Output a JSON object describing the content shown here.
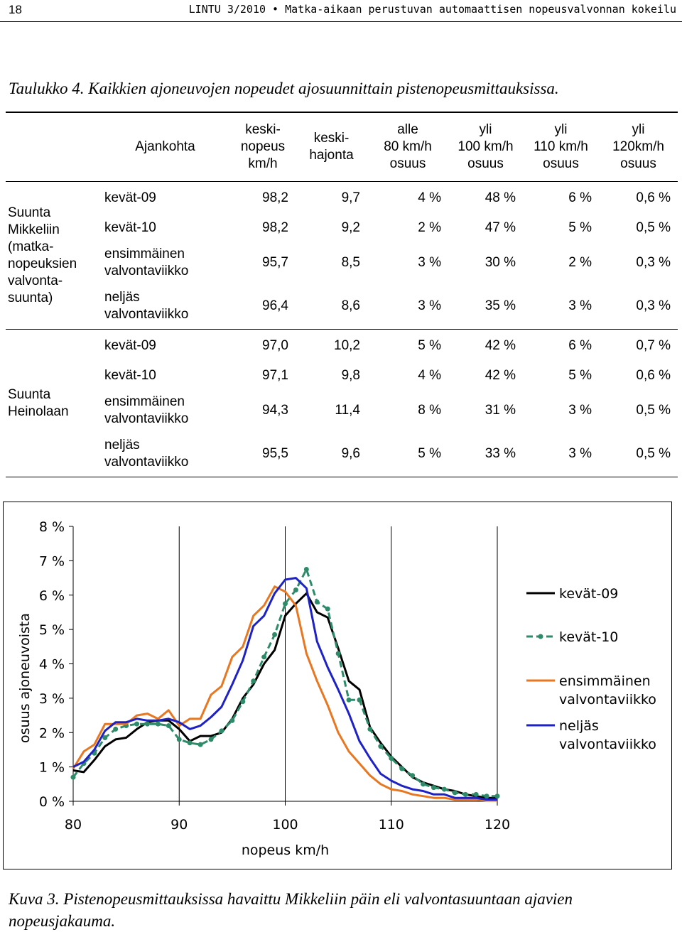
{
  "header": {
    "page_number": "18",
    "running_title": "LINTU 3/2010 • Matka-aikaan perustuvan automaattisen nopeusvalvonnan kokeilu"
  },
  "table": {
    "caption": "Taulukko 4. Kaikkien ajoneuvojen nopeudet ajosuunnittain pistenopeusmittauksissa.",
    "columns": [
      {
        "label": "",
        "lines": []
      },
      {
        "label": "Ajankohta",
        "lines": [
          "Ajankohta"
        ]
      },
      {
        "label": "keskinopeus km/h",
        "lines": [
          "keski-",
          "nopeus",
          "km/h"
        ]
      },
      {
        "label": "keskihajonta",
        "lines": [
          "keski-",
          "hajonta"
        ]
      },
      {
        "label": "alle 80 km/h osuus",
        "lines": [
          "alle",
          "80 km/h",
          "osuus"
        ]
      },
      {
        "label": "yli 100 km/h osuus",
        "lines": [
          "yli",
          "100 km/h",
          "osuus"
        ]
      },
      {
        "label": "yli 110 km/h osuus",
        "lines": [
          "yli",
          "110 km/h",
          "osuus"
        ]
      },
      {
        "label": "yli 120km/h osuus",
        "lines": [
          "yli",
          "120km/h",
          "osuus"
        ]
      }
    ],
    "groups": [
      {
        "label_lines": [
          "Suunta",
          "Mikkeliin",
          "(matka-",
          "nopeuksien",
          "valvonta-",
          "suunta)"
        ],
        "rows": [
          {
            "period": [
              "kevät-09"
            ],
            "values": [
              "98,2",
              "9,7",
              "4 %",
              "48 %",
              "6 %",
              "0,6 %"
            ]
          },
          {
            "period": [
              "kevät-10"
            ],
            "values": [
              "98,2",
              "9,2",
              "2 %",
              "47 %",
              "5 %",
              "0,5 %"
            ]
          },
          {
            "period": [
              "ensimmäinen",
              "valvontaviikko"
            ],
            "values": [
              "95,7",
              "8,5",
              "3 %",
              "30 %",
              "2 %",
              "0,3 %"
            ]
          },
          {
            "period": [
              "neljäs",
              "valvontaviikko"
            ],
            "values": [
              "96,4",
              "8,6",
              "3 %",
              "35 %",
              "3 %",
              "0,3 %"
            ]
          }
        ]
      },
      {
        "label_lines": [
          "Suunta",
          "Heinolaan"
        ],
        "rows": [
          {
            "period": [
              "kevät-09"
            ],
            "values": [
              "97,0",
              "10,2",
              "5 %",
              "42 %",
              "6 %",
              "0,7 %"
            ]
          },
          {
            "period": [
              "kevät-10"
            ],
            "values": [
              "97,1",
              "9,8",
              "4 %",
              "42 %",
              "5 %",
              "0,6 %"
            ]
          },
          {
            "period": [
              "ensimmäinen",
              "valvontaviikko"
            ],
            "values": [
              "94,3",
              "11,4",
              "8 %",
              "31 %",
              "3 %",
              "0,5 %"
            ]
          },
          {
            "period": [
              "neljäs",
              "valvontaviikko"
            ],
            "values": [
              "95,5",
              "9,6",
              "5 %",
              "33 %",
              "3 %",
              "0,5 %"
            ]
          }
        ]
      }
    ]
  },
  "chart_data": {
    "type": "line",
    "title": "",
    "xlabel": "nopeus km/h",
    "ylabel": "osuus ajoneuvoista",
    "xlim": [
      80,
      120
    ],
    "ylim": [
      0,
      8
    ],
    "x_ticks": [
      "80",
      "90",
      "100",
      "110",
      "120"
    ],
    "y_ticks": [
      "0 %",
      "1 %",
      "2 %",
      "3 %",
      "4 %",
      "5 %",
      "6 %",
      "7 %",
      "8 %"
    ],
    "grid": "vertical",
    "legend_position": "right",
    "x": [
      80,
      81,
      82,
      83,
      84,
      85,
      86,
      87,
      88,
      89,
      90,
      91,
      92,
      93,
      94,
      95,
      96,
      97,
      98,
      99,
      100,
      101,
      102,
      103,
      104,
      105,
      106,
      107,
      108,
      109,
      110,
      111,
      112,
      113,
      114,
      115,
      116,
      117,
      118,
      119,
      120
    ],
    "series": [
      {
        "name": "kevät-09",
        "legend_lines": [
          "kevät-09"
        ],
        "color": "#000000",
        "marker": false,
        "dashed": false,
        "values": [
          0.9,
          0.85,
          1.2,
          1.6,
          1.8,
          1.85,
          2.1,
          2.3,
          2.35,
          2.35,
          2.1,
          1.75,
          1.9,
          1.9,
          2.0,
          2.4,
          3.0,
          3.4,
          4.0,
          4.4,
          5.4,
          5.75,
          6.05,
          5.5,
          5.35,
          4.45,
          3.5,
          3.25,
          2.15,
          1.7,
          1.3,
          1.0,
          0.7,
          0.55,
          0.45,
          0.35,
          0.3,
          0.2,
          0.15,
          0.1,
          0.1
        ]
      },
      {
        "name": "kevät-10",
        "legend_lines": [
          "kevät-10"
        ],
        "color": "#2E8B6A",
        "marker": true,
        "dashed": true,
        "values": [
          0.7,
          1.1,
          1.4,
          1.85,
          2.1,
          2.2,
          2.25,
          2.25,
          2.25,
          2.2,
          1.8,
          1.7,
          1.65,
          1.8,
          2.05,
          2.35,
          2.9,
          3.5,
          4.2,
          4.85,
          5.75,
          6.15,
          6.75,
          5.8,
          5.6,
          4.3,
          2.95,
          2.95,
          2.1,
          1.6,
          1.25,
          0.95,
          0.75,
          0.5,
          0.4,
          0.35,
          0.25,
          0.2,
          0.2,
          0.15,
          0.15
        ]
      },
      {
        "name": "ensimmäinen valvontaviikko",
        "legend_lines": [
          "ensimmäinen",
          "valvontaviikko"
        ],
        "color": "#E87722",
        "marker": false,
        "dashed": false,
        "values": [
          0.95,
          1.45,
          1.65,
          2.25,
          2.25,
          2.25,
          2.5,
          2.55,
          2.4,
          2.65,
          2.2,
          2.4,
          2.4,
          3.1,
          3.35,
          4.2,
          4.5,
          5.4,
          5.7,
          6.25,
          6.1,
          5.7,
          4.3,
          3.5,
          2.8,
          2.0,
          1.45,
          1.1,
          0.75,
          0.5,
          0.35,
          0.3,
          0.2,
          0.15,
          0.1,
          0.1,
          0.05,
          0.05,
          0.05,
          0.02,
          0.02
        ]
      },
      {
        "name": "neljäs valvontaviikko",
        "legend_lines": [
          "neljäs",
          "valvontaviikko"
        ],
        "color": "#1E22C4",
        "marker": false,
        "dashed": false,
        "values": [
          1.0,
          1.15,
          1.5,
          2.05,
          2.3,
          2.3,
          2.4,
          2.35,
          2.35,
          2.4,
          2.3,
          2.1,
          2.2,
          2.45,
          2.75,
          3.4,
          4.1,
          5.1,
          5.4,
          6.05,
          6.45,
          6.5,
          6.2,
          4.65,
          3.9,
          3.25,
          2.55,
          1.75,
          1.25,
          0.8,
          0.6,
          0.45,
          0.35,
          0.3,
          0.2,
          0.2,
          0.1,
          0.1,
          0.1,
          0.05,
          0.05
        ]
      }
    ]
  },
  "figure_caption": "Kuva 3. Pistenopeusmittauksissa havaittu Mikkeliin päin eli valvontasuuntaan ajavien nopeusjakauma."
}
